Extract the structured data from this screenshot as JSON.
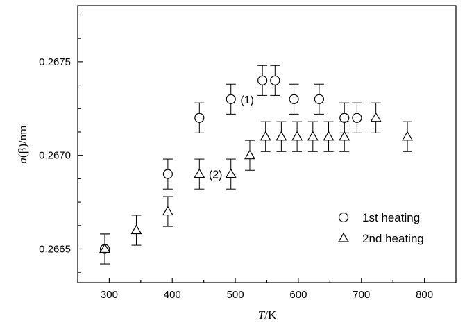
{
  "chart_data": {
    "type": "scatter",
    "xlabel_italic": "T",
    "xlabel_rest": "/K",
    "ylabel_italic": "a",
    "ylabel_rest": "(β)/nm",
    "xlim": [
      250,
      850
    ],
    "ylim": [
      0.26632,
      0.2678
    ],
    "x_ticks": [
      300,
      400,
      500,
      600,
      700,
      800
    ],
    "x_tick_labels": [
      "300",
      "400",
      "500",
      "600",
      "700",
      "800"
    ],
    "y_ticks": [
      0.2665,
      0.267,
      0.2675
    ],
    "y_tick_labels": [
      "0.2665",
      "0.2670",
      "0.2675"
    ],
    "grid": false,
    "legend_position": "bottom-right",
    "series": [
      {
        "name": "1st heating",
        "marker": "circle",
        "error": 8e-05,
        "x": [
          293,
          393,
          443,
          493,
          543,
          563,
          593,
          633,
          673,
          693
        ],
        "y": [
          0.2665,
          0.2669,
          0.2672,
          0.2673,
          0.2674,
          0.2674,
          0.2673,
          0.2673,
          0.2672,
          0.2672
        ]
      },
      {
        "name": "2nd heating",
        "marker": "triangle",
        "error": 8e-05,
        "x": [
          293,
          343,
          393,
          443,
          493,
          523,
          548,
          573,
          598,
          623,
          648,
          673,
          723,
          773
        ],
        "y": [
          0.2665,
          0.2666,
          0.2667,
          0.2669,
          0.2669,
          0.267,
          0.2671,
          0.2671,
          0.2671,
          0.2671,
          0.2671,
          0.2671,
          0.2672,
          0.2671
        ]
      }
    ],
    "annotations": [
      {
        "text": "(1)",
        "x": 508,
        "y": 0.2673
      },
      {
        "text": "(2)",
        "x": 458,
        "y": 0.2669
      }
    ]
  }
}
